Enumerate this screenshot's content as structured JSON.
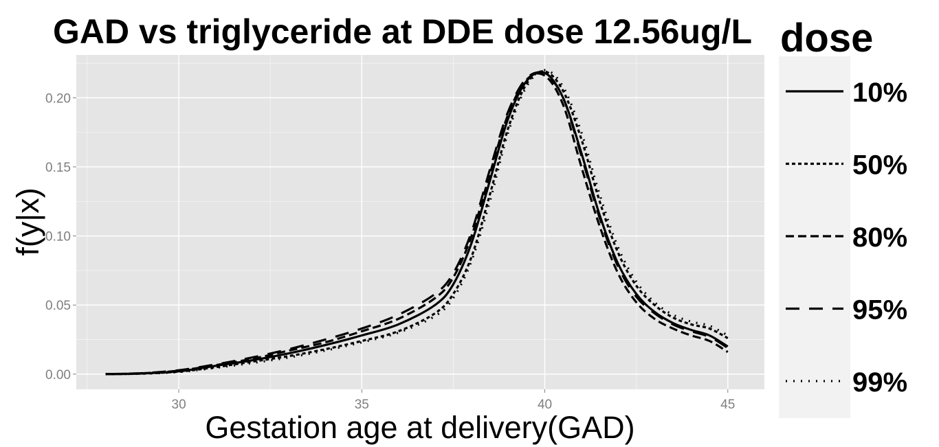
{
  "chart_data": {
    "type": "line",
    "title": "GAD vs triglyceride at DDE dose 12.56ug/L",
    "xlabel": "Gestation age at delivery(GAD)",
    "ylabel": "f(y|x)",
    "xlim": [
      27.2,
      46.0
    ],
    "ylim": [
      -0.011,
      0.231
    ],
    "xticks": [
      30,
      35,
      40,
      45
    ],
    "xtick_labels": [
      "30",
      "35",
      "40",
      "45"
    ],
    "yticks": [
      0.0,
      0.05,
      0.1,
      0.15,
      0.2
    ],
    "ytick_labels": [
      "0.00",
      "0.05",
      "0.10",
      "0.15",
      "0.20"
    ],
    "grid": true,
    "legend": {
      "title": "dose",
      "placement": "right",
      "entries": [
        "10%",
        "50%",
        "80%",
        "95%",
        "99%"
      ]
    },
    "x": [
      28,
      29,
      30,
      31,
      32,
      33,
      34,
      35,
      36,
      37,
      37.5,
      38,
      38.5,
      39,
      39.5,
      40,
      40.5,
      41,
      41.5,
      42,
      42.5,
      43,
      43.5,
      44,
      44.5,
      45
    ],
    "series": [
      {
        "name": "10%",
        "style": "solid",
        "values": [
          0.0,
          0.0005,
          0.002,
          0.006,
          0.01,
          0.015,
          0.021,
          0.028,
          0.036,
          0.05,
          0.065,
          0.095,
          0.14,
          0.185,
          0.212,
          0.218,
          0.2,
          0.16,
          0.115,
          0.08,
          0.058,
          0.045,
          0.037,
          0.032,
          0.028,
          0.02
        ]
      },
      {
        "name": "50%",
        "style": "dotted-fine",
        "values": [
          0.0,
          0.0004,
          0.0018,
          0.005,
          0.009,
          0.013,
          0.018,
          0.024,
          0.031,
          0.044,
          0.058,
          0.085,
          0.13,
          0.178,
          0.21,
          0.219,
          0.205,
          0.17,
          0.125,
          0.088,
          0.064,
          0.05,
          0.041,
          0.036,
          0.033,
          0.026
        ]
      },
      {
        "name": "80%",
        "style": "dashed",
        "values": [
          0.0,
          0.0006,
          0.0025,
          0.0065,
          0.011,
          0.017,
          0.023,
          0.031,
          0.04,
          0.055,
          0.07,
          0.1,
          0.145,
          0.188,
          0.213,
          0.216,
          0.195,
          0.15,
          0.107,
          0.073,
          0.052,
          0.04,
          0.033,
          0.028,
          0.024,
          0.016
        ]
      },
      {
        "name": "95%",
        "style": "long-dash",
        "values": [
          0.0,
          0.0007,
          0.0028,
          0.007,
          0.012,
          0.018,
          0.025,
          0.033,
          0.043,
          0.058,
          0.073,
          0.103,
          0.148,
          0.19,
          0.214,
          0.217,
          0.2,
          0.158,
          0.113,
          0.078,
          0.056,
          0.044,
          0.036,
          0.031,
          0.027,
          0.019
        ]
      },
      {
        "name": "99%",
        "style": "dotted",
        "values": [
          0.0,
          0.0003,
          0.0015,
          0.0045,
          0.008,
          0.012,
          0.017,
          0.023,
          0.03,
          0.042,
          0.055,
          0.082,
          0.125,
          0.175,
          0.208,
          0.22,
          0.208,
          0.175,
          0.13,
          0.092,
          0.067,
          0.052,
          0.043,
          0.038,
          0.035,
          0.028
        ]
      }
    ]
  }
}
